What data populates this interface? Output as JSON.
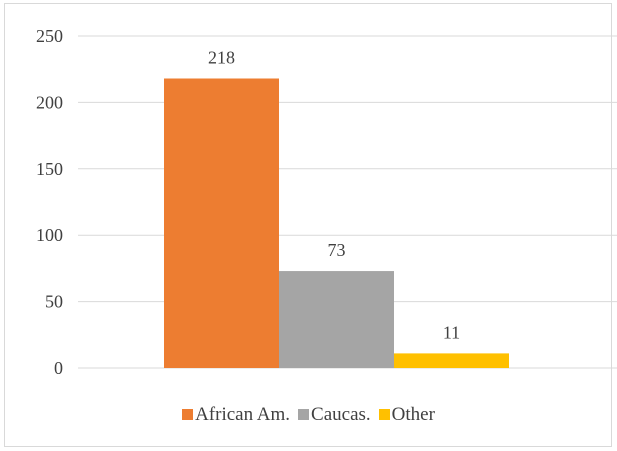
{
  "chart_data": {
    "type": "bar",
    "categories": [
      "African Am.",
      "Caucas.",
      "Other"
    ],
    "values": [
      218,
      73,
      11
    ],
    "colors": [
      "#ed7d31",
      "#a5a5a5",
      "#ffc000"
    ],
    "ylim": [
      0,
      250
    ],
    "yticks": [
      0,
      50,
      100,
      150,
      200,
      250
    ],
    "grid": true,
    "legend_position": "bottom",
    "data_labels": true
  }
}
